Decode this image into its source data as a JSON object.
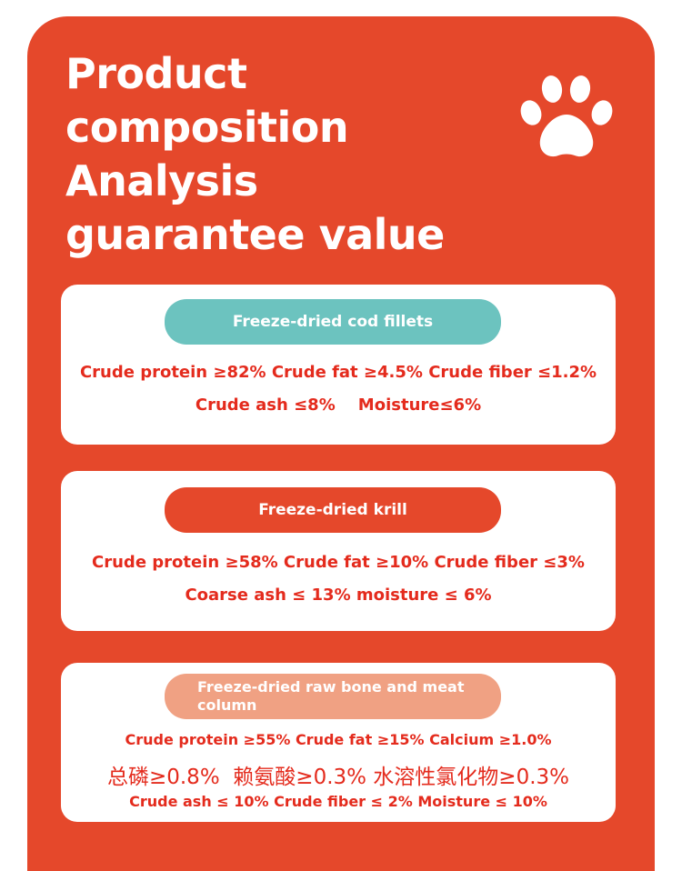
{
  "title": {
    "lines": [
      "Product",
      "composition",
      "Analysis",
      "guarantee value"
    ]
  },
  "icons": {
    "decoration": "paw-print-icon"
  },
  "colors": {
    "background": "#e5482b",
    "card": "#ffffff",
    "pill_cod": "#6cc3bf",
    "pill_krill": "#e5482b",
    "pill_bone": "#f0a183",
    "text_red": "#e42b1d"
  },
  "cards": [
    {
      "label": "Freeze-dried cod fillets",
      "lines": [
        "Crude protein ≥82% Crude fat ≥4.5% Crude fiber ≤1.2%",
        "Crude ash ≤8%    Moisture≤6%"
      ]
    },
    {
      "label": "Freeze-dried krill",
      "lines": [
        "Crude protein ≥58% Crude fat ≥10% Crude fiber ≤3%",
        "Coarse ash ≤ 13% moisture ≤ 6%"
      ]
    },
    {
      "label": "Freeze-dried raw bone and meat column",
      "lines": [
        "Crude protein ≥55% Crude fat ≥15% Calcium ≥1.0%",
        "总磷≥0.8%  赖氨酸≥0.3% 水溶性氯化物≥0.3%",
        "Crude ash ≤ 10% Crude fiber ≤ 2% Moisture ≤ 10%"
      ]
    }
  ]
}
